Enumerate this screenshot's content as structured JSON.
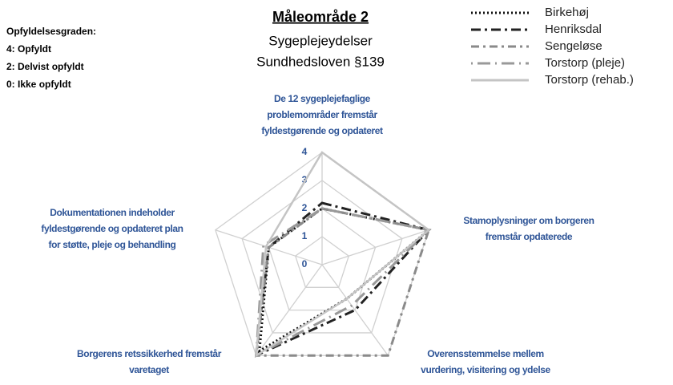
{
  "chart_data": {
    "type": "radar",
    "title": "Måleområde 2",
    "subtitle": [
      "Sygeplejeydelser",
      "Sundhedsloven §139"
    ],
    "note": [
      "Opfyldelsesgraden:",
      "4: Opfyldt",
      "2: Delvist opfyldt",
      "0: Ikke opfyldt"
    ],
    "categories": [
      [
        "De 12 sygeplejefaglige",
        "problemområder fremstår",
        "fyldestgørende og opdateret"
      ],
      [
        "Stamoplysninger om borgeren",
        "fremstår opdaterede"
      ],
      [
        "Overensstemmelse mellem",
        "vurdering, visitering og ydelse"
      ],
      [
        "Borgerens retssikkerhed fremstår",
        "varetaget"
      ],
      [
        "Dokumentationen indeholder",
        "fyldestgørende og opdateret plan",
        "for støtte, pleje og behandling"
      ]
    ],
    "series": [
      {
        "name": "Birkehøj",
        "color": "#111111",
        "dash": "2,3",
        "values": [
          2,
          4,
          1.5,
          3.8,
          2
        ]
      },
      {
        "name": "Henriksdal",
        "color": "#222222",
        "dash": "12,5,3,5",
        "values": [
          2.2,
          4,
          2,
          4,
          2
        ]
      },
      {
        "name": "Sengeløse",
        "color": "#8a8a8a",
        "dash": "10,5,3,5",
        "values": [
          2,
          4,
          4,
          4,
          2
        ]
      },
      {
        "name": "Torstorp (pleje)",
        "color": "#999999",
        "dash": "2,6,16,6",
        "values": [
          2,
          4,
          1.8,
          4,
          2.2
        ]
      },
      {
        "name": "Torstorp (rehab.)",
        "color": "#c4c4c4",
        "dash": "",
        "values": [
          4,
          4,
          1.5,
          4,
          2.1
        ]
      }
    ],
    "ylim": [
      0,
      4
    ],
    "yticks": [
      0,
      1,
      2,
      3,
      4
    ],
    "grid": true
  }
}
